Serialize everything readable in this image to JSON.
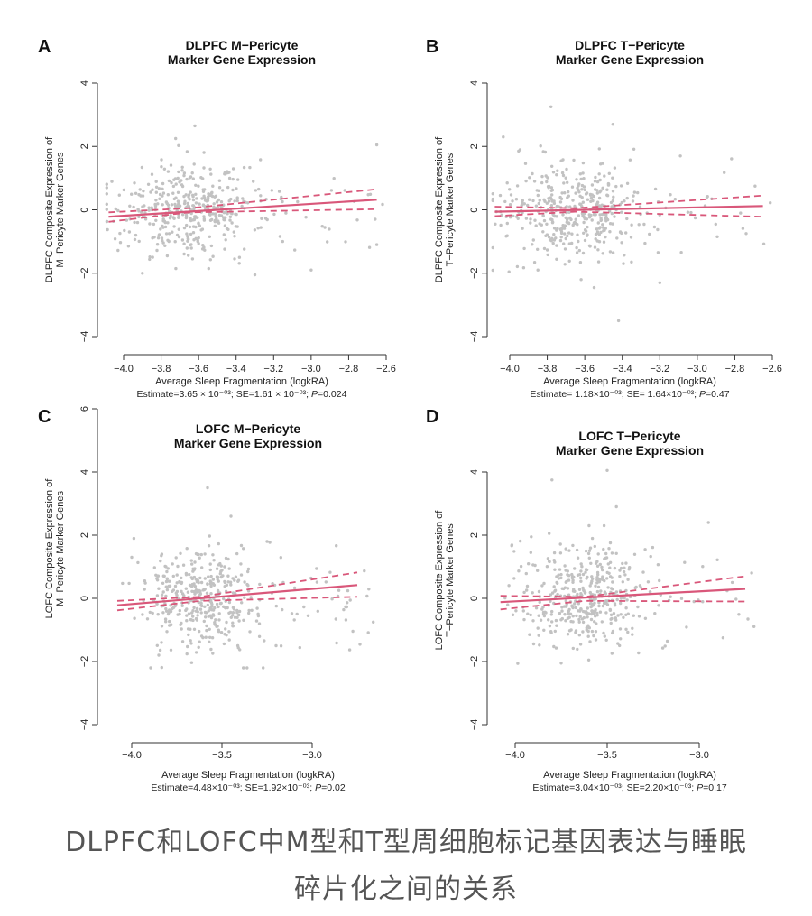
{
  "chart_data": [
    {
      "panel": "A",
      "type": "scatter",
      "title": [
        "DLPFC M−Pericyte",
        "Marker Gene Expression"
      ],
      "xlabel": "Average Sleep Fragmentation (logkRA)",
      "ylabel": [
        "DLPFC Composite Expression of",
        "M−Pericyte Marker Genes"
      ],
      "stats": "Estimate=3.65 × 10⁻⁰³; SE=1.61 × 10⁻⁰³; P=0.024",
      "xlim": [
        -4.1,
        -2.6
      ],
      "ylim": [
        -4,
        4
      ],
      "xticks": [
        -4.0,
        -3.8,
        -3.6,
        -3.4,
        -3.2,
        -3.0,
        -2.8,
        -2.6
      ],
      "xtick_labels": [
        "−4.0",
        "−3.8",
        "−3.6",
        "−3.4",
        "−3.2",
        "−3.0",
        "−2.8",
        "−2.6"
      ],
      "yticks": [
        -4,
        -2,
        0,
        2,
        4
      ],
      "ytick_labels": [
        "−4",
        "−2",
        "0",
        "2",
        "4"
      ],
      "fit_line": {
        "x": [
          -4.08,
          -2.65
        ],
        "y": [
          -0.22,
          0.32
        ]
      },
      "ci_upper": {
        "x": [
          -4.08,
          -3.65,
          -2.65
        ],
        "y": [
          -0.08,
          0.05,
          0.65
        ]
      },
      "ci_lower": {
        "x": [
          -4.08,
          -3.65,
          -2.65
        ],
        "y": [
          -0.38,
          -0.08,
          0.02
        ]
      },
      "cloud": {
        "x_center": -3.65,
        "x_spread": 0.18,
        "y_sd": 0.75,
        "n": 430
      },
      "outliers": [
        {
          "x": -3.62,
          "y": 2.65
        },
        {
          "x": -2.65,
          "y": 2.05
        },
        {
          "x": -2.65,
          "y": -1.1
        },
        {
          "x": -3.3,
          "y": -2.05
        },
        {
          "x": -3.9,
          "y": -2.0
        },
        {
          "x": -3.0,
          "y": -1.9
        }
      ]
    },
    {
      "panel": "B",
      "type": "scatter",
      "title": [
        "DLPFC T−Pericyte",
        "Marker Gene Expression"
      ],
      "xlabel": "Average Sleep Fragmentation (logkRA)",
      "ylabel": [
        "DLPFC Composite Expression of",
        "T−Pericyte Marker Genes"
      ],
      "stats": "Estimate= 1.18×10⁻⁰³; SE= 1.64×10⁻⁰³; P=0.47",
      "xlim": [
        -4.1,
        -2.6
      ],
      "ylim": [
        -4,
        4
      ],
      "xticks": [
        -4.0,
        -3.8,
        -3.6,
        -3.4,
        -3.2,
        -3.0,
        -2.8,
        -2.6
      ],
      "xtick_labels": [
        "−4.0",
        "−3.8",
        "−3.6",
        "−3.4",
        "−3.2",
        "−3.0",
        "−2.8",
        "−2.6"
      ],
      "yticks": [
        -4,
        -2,
        0,
        2,
        4
      ],
      "ytick_labels": [
        "−4",
        "−2",
        "0",
        "2",
        "4"
      ],
      "fit_line": {
        "x": [
          -4.08,
          -2.65
        ],
        "y": [
          -0.06,
          0.12
        ]
      },
      "ci_upper": {
        "x": [
          -4.08,
          -3.65,
          -2.65
        ],
        "y": [
          0.1,
          0.05,
          0.45
        ]
      },
      "ci_lower": {
        "x": [
          -4.08,
          -3.65,
          -2.65
        ],
        "y": [
          -0.2,
          -0.06,
          -0.22
        ]
      },
      "cloud": {
        "x_center": -3.65,
        "x_spread": 0.18,
        "y_sd": 0.75,
        "n": 430
      },
      "outliers": [
        {
          "x": -3.78,
          "y": 3.25
        },
        {
          "x": -3.45,
          "y": 2.7
        },
        {
          "x": -3.42,
          "y": -3.5
        },
        {
          "x": -3.55,
          "y": -2.45
        },
        {
          "x": -3.2,
          "y": -2.3
        },
        {
          "x": -3.85,
          "y": -1.9
        }
      ]
    },
    {
      "panel": "C",
      "type": "scatter",
      "title": [
        "LOFC M−Pericyte",
        "Marker Gene Expression"
      ],
      "xlabel": "Average Sleep Fragmentation (logkRA)",
      "ylabel": [
        "LOFC Composite Expression of",
        "M−Pericyte Marker Genes"
      ],
      "stats": "Estimate=4.48×10⁻⁰³; SE=1.92×10⁻⁰³; P=0.02",
      "xlim": [
        -4.1,
        -2.65
      ],
      "ylim": [
        -4,
        6
      ],
      "xticks": [
        -4.0,
        -3.5,
        -3.0
      ],
      "xtick_labels": [
        "−4.0",
        "−3.5",
        "−3.0"
      ],
      "yticks": [
        -4,
        -2,
        0,
        2,
        4,
        6
      ],
      "ytick_labels": [
        "−4",
        "−2",
        "0",
        "2",
        "4",
        "6"
      ],
      "fit_line": {
        "x": [
          -4.08,
          -2.75
        ],
        "y": [
          -0.22,
          0.42
        ]
      },
      "ci_upper": {
        "x": [
          -4.08,
          -3.62,
          -2.75
        ],
        "y": [
          -0.08,
          0.05,
          0.82
        ]
      },
      "ci_lower": {
        "x": [
          -4.08,
          -3.62,
          -2.75
        ],
        "y": [
          -0.38,
          -0.08,
          0.05
        ]
      },
      "cloud": {
        "x_center": -3.62,
        "x_spread": 0.16,
        "y_sd": 0.8,
        "n": 430
      },
      "outliers": [
        {
          "x": -3.58,
          "y": 3.5
        },
        {
          "x": -3.45,
          "y": 2.6
        },
        {
          "x": -4.0,
          "y": 1.3
        },
        {
          "x": -3.25,
          "y": 1.8
        },
        {
          "x": -3.85,
          "y": -1.8
        },
        {
          "x": -3.2,
          "y": -1.5
        }
      ]
    },
    {
      "panel": "D",
      "type": "scatter",
      "title": [
        "LOFC T−Pericyte",
        "Marker Gene Expression"
      ],
      "xlabel": "Average Sleep Fragmentation (logkRA)",
      "ylabel": [
        "LOFC Composite Expression of",
        "T−Pericyte Marker Genes"
      ],
      "stats": "Estimate=3.04×10⁻⁰³; SE=2.20×10⁻⁰³; P=0.17",
      "xlim": [
        -4.1,
        -2.65
      ],
      "ylim": [
        -4,
        4
      ],
      "xticks": [
        -4.0,
        -3.5,
        -3.0
      ],
      "xtick_labels": [
        "−4.0",
        "−3.5",
        "−3.0"
      ],
      "yticks": [
        -4,
        -2,
        0,
        2,
        4
      ],
      "ytick_labels": [
        "−4",
        "−2",
        "0",
        "2",
        "4"
      ],
      "fit_line": {
        "x": [
          -4.08,
          -2.75
        ],
        "y": [
          -0.12,
          0.3
        ]
      },
      "ci_upper": {
        "x": [
          -4.08,
          -3.62,
          -2.75
        ],
        "y": [
          0.08,
          0.05,
          0.7
        ]
      },
      "ci_lower": {
        "x": [
          -4.08,
          -3.62,
          -2.75
        ],
        "y": [
          -0.35,
          -0.08,
          -0.1
        ]
      },
      "cloud": {
        "x_center": -3.62,
        "x_spread": 0.16,
        "y_sd": 0.8,
        "n": 430
      },
      "outliers": [
        {
          "x": -3.5,
          "y": 4.05
        },
        {
          "x": -3.8,
          "y": 3.75
        },
        {
          "x": -3.45,
          "y": 2.9
        },
        {
          "x": -3.75,
          "y": -2.05
        },
        {
          "x": -3.6,
          "y": -1.95
        },
        {
          "x": -2.95,
          "y": 2.4
        }
      ]
    }
  ],
  "caption": [
    "DLPFC和LOFC中M型和T型周细胞标记基因表达与睡眠",
    "碎片化之间的关系"
  ],
  "colors": {
    "points": "#c2c2c2",
    "fit": "#d9577a",
    "axes": "#333333"
  }
}
